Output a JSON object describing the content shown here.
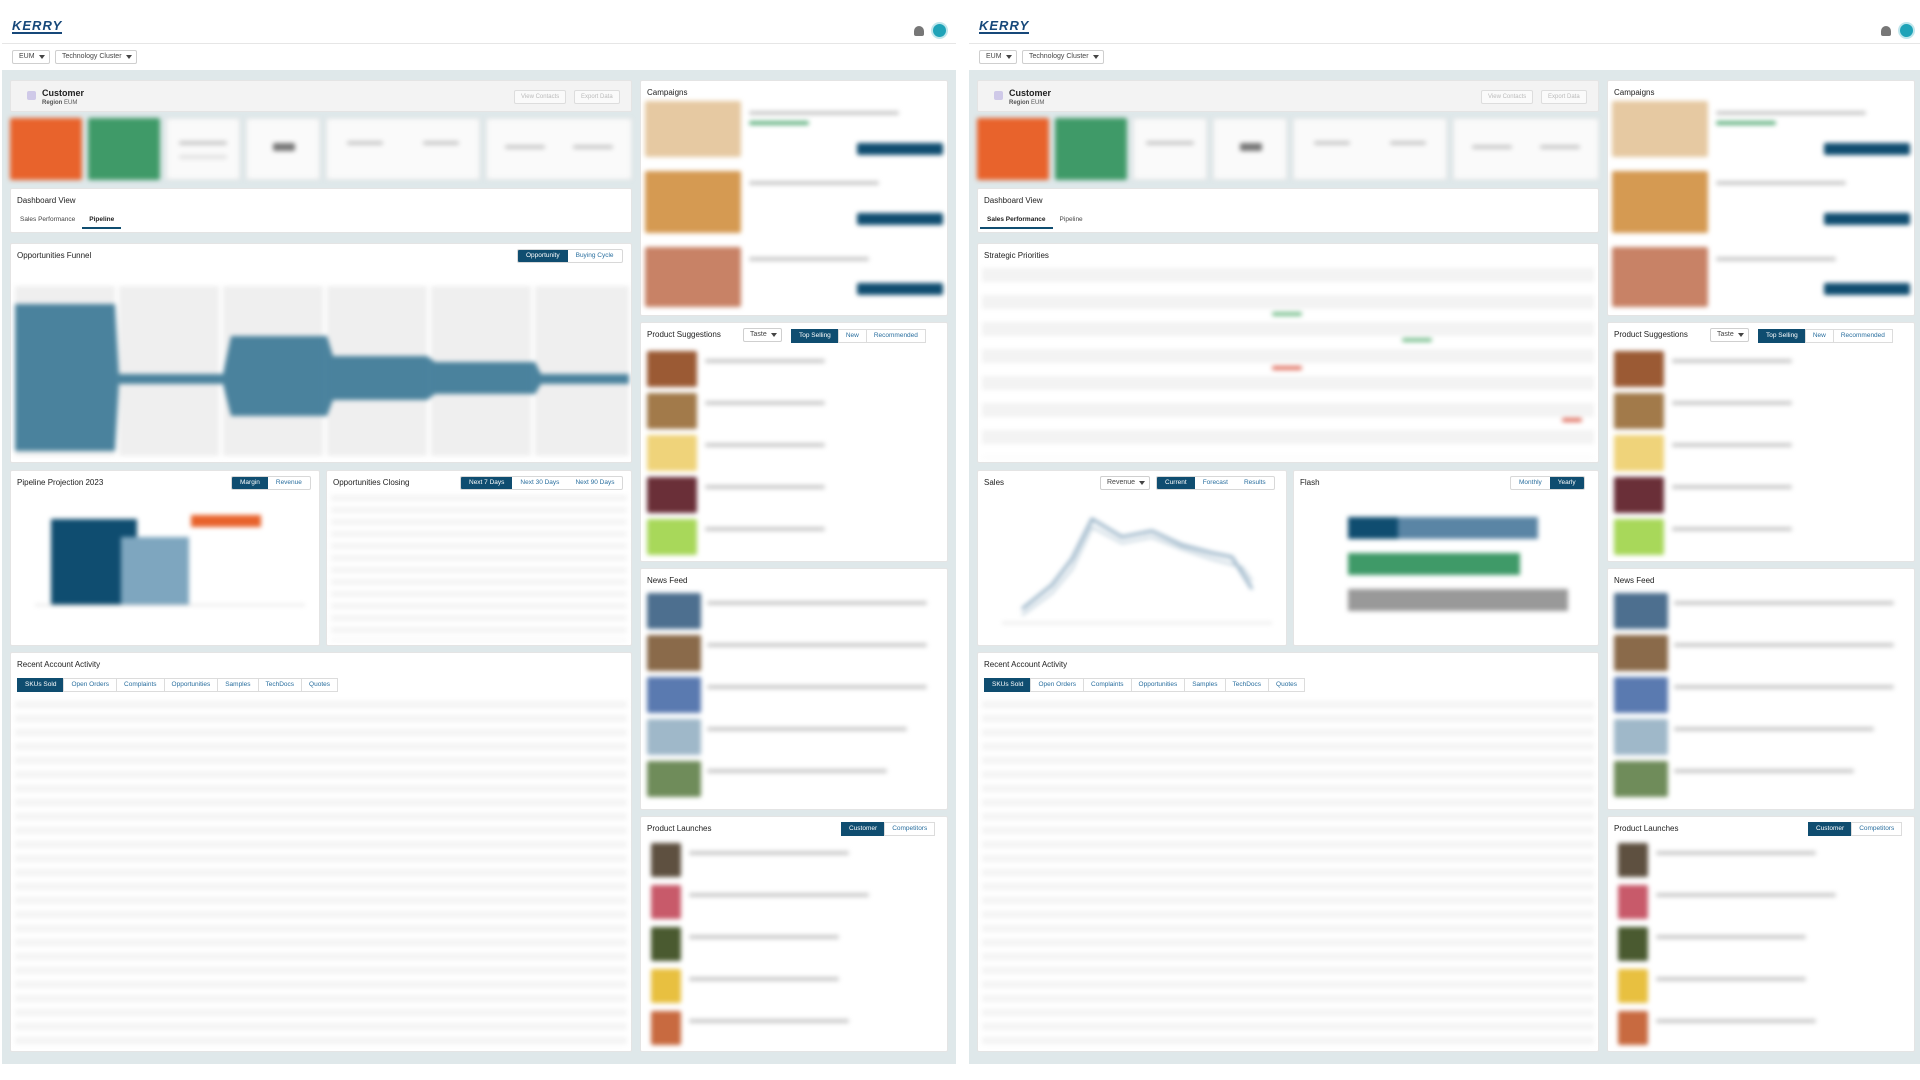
{
  "brand": {
    "logo": "KERRY"
  },
  "filters": {
    "region": "EUM",
    "cluster": "Technology Cluster"
  },
  "customer": {
    "title": "Customer",
    "region_label": "Region",
    "region_value": "EUM",
    "btn_contacts": "View Contacts",
    "btn_export": "Export Data"
  },
  "dashboard_view": {
    "title": "Dashboard View",
    "tabs": [
      "Sales Performance",
      "Pipeline"
    ]
  },
  "funnel": {
    "title": "Opportunities Funnel",
    "toggle": [
      "Opportunity",
      "Buying Cycle"
    ]
  },
  "projection": {
    "title": "Pipeline Projection 2023",
    "toggle": [
      "Margin",
      "Revenue"
    ]
  },
  "closing": {
    "title": "Opportunities Closing",
    "toggle": [
      "Next 7 Days",
      "Next 30 Days",
      "Next 90 Days"
    ]
  },
  "strategic": {
    "title": "Strategic Priorities"
  },
  "sales": {
    "title": "Sales",
    "dropdown": "Revenue",
    "toggle": [
      "Current",
      "Forecast",
      "Results"
    ]
  },
  "flash": {
    "title": "Flash",
    "toggle": [
      "Monthly",
      "Yearly"
    ]
  },
  "activity": {
    "title": "Recent Account Activity",
    "tabs": [
      "SKUs Sold",
      "Open Orders",
      "Complaints",
      "Opportunities",
      "Samples",
      "TechDocs",
      "Quotes"
    ]
  },
  "campaigns": {
    "title": "Campaigns"
  },
  "suggestions": {
    "title": "Product Suggestions",
    "dropdown": "Taste",
    "toggle": [
      "Top Selling",
      "New",
      "Recommended"
    ]
  },
  "news": {
    "title": "News Feed"
  },
  "launches": {
    "title": "Product Launches",
    "toggle": [
      "Customer",
      "Competitors"
    ]
  },
  "colors": {
    "primary": "#0f4d70",
    "kpi_orange": "#e8632c",
    "kpi_green": "#3f9a68",
    "funnel": "#2d6e8e",
    "background": "#dfe8ea"
  }
}
